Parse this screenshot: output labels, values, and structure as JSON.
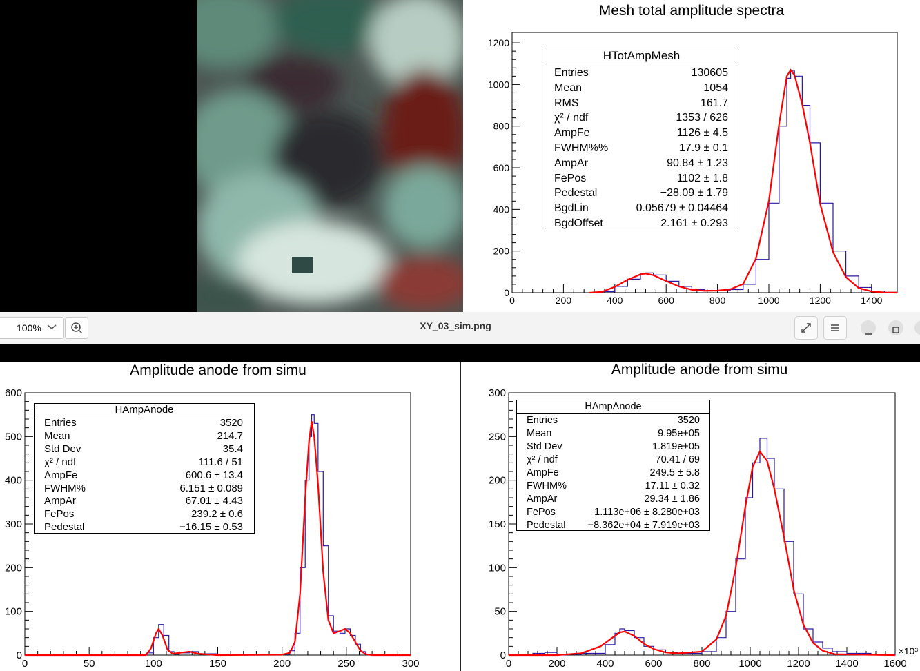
{
  "viewer": {
    "zoom_value": "100%",
    "filename": "XY_03_sim.png",
    "icons": [
      "chevron-down-icon",
      "zoom-in-icon",
      "fullscreen-icon",
      "hamburger-menu-icon",
      "minimize-icon",
      "maximize-icon"
    ]
  },
  "top_panel": {
    "title": "Mesh total amplitude spectra",
    "stats": {
      "name": "HTotAmpMesh",
      "rows": [
        {
          "label": "Entries",
          "value": "130605"
        },
        {
          "label": "Mean",
          "value": "1054"
        },
        {
          "label": "RMS",
          "value": "161.7"
        },
        {
          "label": "χ² / ndf",
          "value": "1353 / 626"
        },
        {
          "label": "AmpFe",
          "value": "1126 ± 4.5"
        },
        {
          "label": "FWHM%%",
          "value": "17.9 ± 0.1"
        },
        {
          "label": "AmpAr",
          "value": "90.84 ± 1.23"
        },
        {
          "label": "FePos",
          "value": "1102 ± 1.8"
        },
        {
          "label": "Pedestal",
          "value": "−28.09 ± 1.79"
        },
        {
          "label": "BgdLin",
          "value": "0.05679 ± 0.04464"
        },
        {
          "label": "BgdOffset",
          "value": "2.161 ± 0.293"
        }
      ]
    }
  },
  "bottom_left_panel": {
    "title": "Amplitude anode from simu",
    "stats": {
      "name": "HAmpAnode",
      "rows": [
        {
          "label": "Entries",
          "value": "3520"
        },
        {
          "label": "Mean",
          "value": "214.7"
        },
        {
          "label": "Std Dev",
          "value": "35.4"
        },
        {
          "label": "χ² / ndf",
          "value": "111.6 / 51"
        },
        {
          "label": "AmpFe",
          "value": "600.6 ± 13.4"
        },
        {
          "label": "FWHM%",
          "value": "6.151 ± 0.089"
        },
        {
          "label": "AmpAr",
          "value": "67.01 ± 4.43"
        },
        {
          "label": "FePos",
          "value": "239.2 ± 0.6"
        },
        {
          "label": "Pedestal",
          "value": "−16.15 ± 0.53"
        }
      ]
    }
  },
  "bottom_right_panel": {
    "title": "Amplitude anode from simu",
    "x_exponent_label": "×10³",
    "stats": {
      "name": "HAmpAnode",
      "rows": [
        {
          "label": "Entries",
          "value": "3520"
        },
        {
          "label": "Mean",
          "value": "9.95e+05"
        },
        {
          "label": "Std Dev",
          "value": "1.819e+05"
        },
        {
          "label": "χ² / ndf",
          "value": "70.41 / 69"
        },
        {
          "label": "AmpFe",
          "value": "249.5 ± 5.8"
        },
        {
          "label": "FWHM%",
          "value": "17.11 ± 0.32"
        },
        {
          "label": "AmpAr",
          "value": "29.34 ± 1.86"
        },
        {
          "label": "FePos",
          "value": "1.113e+06 ± 8.280e+03"
        },
        {
          "label": "Pedestal",
          "value": "−8.362e+04 ± 7.919e+03"
        }
      ]
    }
  },
  "colors": {
    "histogram": "#2b1aa0",
    "fit": "#ff0000",
    "axis": "#000000"
  },
  "chart_data": [
    {
      "type": "line",
      "title": "Mesh total amplitude spectra",
      "xlim": [
        0,
        1500
      ],
      "ylim": [
        0,
        1250
      ],
      "x_ticks": [
        0,
        200,
        400,
        600,
        800,
        1000,
        1200,
        1400
      ],
      "y_ticks": [
        0,
        200,
        400,
        600,
        800,
        1000,
        1200
      ],
      "grid": false,
      "legend_position": "top-left",
      "series": [
        {
          "values": [
            [
              300,
              0
            ],
            [
              350,
              5
            ],
            [
              400,
              30
            ],
            [
              450,
              65
            ],
            [
              500,
              90
            ],
            [
              520,
              95
            ],
            [
              550,
              85
            ],
            [
              600,
              55
            ],
            [
              650,
              30
            ],
            [
              700,
              15
            ],
            [
              750,
              10
            ],
            [
              800,
              10
            ],
            [
              850,
              15
            ],
            [
              900,
              40
            ],
            [
              950,
              160
            ],
            [
              1000,
              430
            ],
            [
              1040,
              800
            ],
            [
              1070,
              1030
            ],
            [
              1085,
              1065
            ],
            [
              1100,
              1040
            ],
            [
              1130,
              900
            ],
            [
              1160,
              720
            ],
            [
              1200,
              430
            ],
            [
              1250,
              200
            ],
            [
              1300,
              80
            ],
            [
              1350,
              25
            ],
            [
              1400,
              8
            ],
            [
              1450,
              2
            ],
            [
              1500,
              0
            ]
          ]
        },
        {
          "values": [
            [
              300,
              0
            ],
            [
              350,
              4
            ],
            [
              400,
              28
            ],
            [
              450,
              62
            ],
            [
              500,
              88
            ],
            [
              520,
              92
            ],
            [
              550,
              84
            ],
            [
              600,
              56
            ],
            [
              650,
              30
            ],
            [
              700,
              14
            ],
            [
              750,
              9
            ],
            [
              800,
              10
            ],
            [
              850,
              16
            ],
            [
              900,
              42
            ],
            [
              950,
              165
            ],
            [
              1000,
              440
            ],
            [
              1040,
              810
            ],
            [
              1070,
              1040
            ],
            [
              1085,
              1070
            ],
            [
              1100,
              1045
            ],
            [
              1130,
              905
            ],
            [
              1160,
              720
            ],
            [
              1200,
              425
            ],
            [
              1250,
              195
            ],
            [
              1300,
              75
            ],
            [
              1350,
              22
            ],
            [
              1400,
              6
            ],
            [
              1450,
              1
            ],
            [
              1500,
              0
            ]
          ]
        }
      ]
    },
    {
      "type": "line",
      "title": "Amplitude anode from simu",
      "xlim": [
        0,
        300
      ],
      "ylim": [
        0,
        600
      ],
      "x_ticks": [
        0,
        50,
        100,
        150,
        200,
        250,
        300
      ],
      "y_ticks": [
        0,
        100,
        200,
        300,
        400,
        500,
        600
      ],
      "grid": false,
      "legend_position": "top-left",
      "series": [
        {
          "values": [
            [
              0,
              0
            ],
            [
              90,
              0
            ],
            [
              95,
              5
            ],
            [
              100,
              40
            ],
            [
              104,
              70
            ],
            [
              108,
              45
            ],
            [
              112,
              8
            ],
            [
              116,
              2
            ],
            [
              120,
              5
            ],
            [
              128,
              8
            ],
            [
              135,
              3
            ],
            [
              150,
              0
            ],
            [
              200,
              2
            ],
            [
              206,
              10
            ],
            [
              210,
              50
            ],
            [
              214,
              200
            ],
            [
              218,
              400
            ],
            [
              221,
              500
            ],
            [
              223,
              550
            ],
            [
              225,
              530
            ],
            [
              228,
              420
            ],
            [
              232,
              250
            ],
            [
              236,
              90
            ],
            [
              240,
              55
            ],
            [
              245,
              50
            ],
            [
              249,
              60
            ],
            [
              253,
              45
            ],
            [
              257,
              25
            ],
            [
              261,
              8
            ],
            [
              265,
              2
            ],
            [
              270,
              0
            ],
            [
              300,
              0
            ]
          ]
        },
        {
          "values": [
            [
              0,
              0
            ],
            [
              94,
              0
            ],
            [
              98,
              15
            ],
            [
              102,
              50
            ],
            [
              104,
              60
            ],
            [
              107,
              45
            ],
            [
              111,
              12
            ],
            [
              115,
              3
            ],
            [
              120,
              5
            ],
            [
              128,
              8
            ],
            [
              135,
              3
            ],
            [
              150,
              0
            ],
            [
              200,
              1
            ],
            [
              206,
              5
            ],
            [
              210,
              30
            ],
            [
              214,
              140
            ],
            [
              218,
              360
            ],
            [
              221,
              490
            ],
            [
              223,
              535
            ],
            [
              225,
              500
            ],
            [
              228,
              390
            ],
            [
              232,
              190
            ],
            [
              236,
              80
            ],
            [
              240,
              50
            ],
            [
              245,
              55
            ],
            [
              249,
              60
            ],
            [
              253,
              50
            ],
            [
              257,
              30
            ],
            [
              261,
              10
            ],
            [
              265,
              2
            ],
            [
              270,
              0
            ],
            [
              300,
              0
            ]
          ]
        }
      ]
    },
    {
      "type": "line",
      "title": "Amplitude anode from simu",
      "xlim": [
        0,
        1600
      ],
      "ylim": [
        0,
        300
      ],
      "x_ticks": [
        0,
        200,
        400,
        600,
        800,
        1000,
        1200,
        1400,
        1600
      ],
      "y_ticks": [
        0,
        50,
        100,
        150,
        200,
        250,
        300
      ],
      "grid": false,
      "legend_position": "top-left",
      "series": [
        {
          "values": [
            [
              0,
              0
            ],
            [
              100,
              2
            ],
            [
              150,
              3
            ],
            [
              200,
              1
            ],
            [
              300,
              2
            ],
            [
              400,
              12
            ],
            [
              440,
              25
            ],
            [
              460,
              30
            ],
            [
              480,
              28
            ],
            [
              520,
              20
            ],
            [
              560,
              10
            ],
            [
              600,
              6
            ],
            [
              650,
              3
            ],
            [
              700,
              2
            ],
            [
              800,
              4
            ],
            [
              860,
              20
            ],
            [
              900,
              50
            ],
            [
              940,
              110
            ],
            [
              980,
              180
            ],
            [
              1010,
              220
            ],
            [
              1040,
              248
            ],
            [
              1070,
              225
            ],
            [
              1100,
              190
            ],
            [
              1140,
              130
            ],
            [
              1180,
              70
            ],
            [
              1220,
              30
            ],
            [
              1260,
              15
            ],
            [
              1300,
              8
            ],
            [
              1340,
              4
            ],
            [
              1400,
              2
            ],
            [
              1500,
              1
            ],
            [
              1600,
              0
            ]
          ]
        },
        {
          "values": [
            [
              0,
              0
            ],
            [
              200,
              0
            ],
            [
              300,
              2
            ],
            [
              380,
              10
            ],
            [
              420,
              18
            ],
            [
              460,
              26
            ],
            [
              480,
              27
            ],
            [
              520,
              22
            ],
            [
              560,
              13
            ],
            [
              600,
              7
            ],
            [
              650,
              3
            ],
            [
              700,
              2
            ],
            [
              800,
              4
            ],
            [
              860,
              18
            ],
            [
              900,
              45
            ],
            [
              940,
              100
            ],
            [
              980,
              170
            ],
            [
              1010,
              215
            ],
            [
              1040,
              233
            ],
            [
              1070,
              222
            ],
            [
              1100,
              190
            ],
            [
              1140,
              135
            ],
            [
              1180,
              75
            ],
            [
              1220,
              35
            ],
            [
              1260,
              14
            ],
            [
              1300,
              5
            ],
            [
              1350,
              1
            ],
            [
              1600,
              0
            ]
          ]
        }
      ]
    }
  ]
}
